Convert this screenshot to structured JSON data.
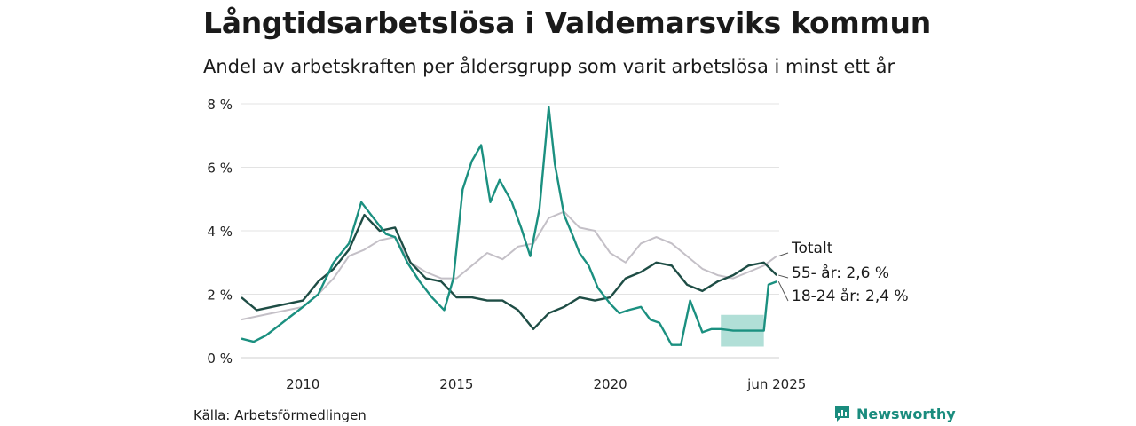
{
  "chart_data": {
    "type": "line",
    "title": "Långtidsarbetslösa i Valdemarsviks kommun",
    "subtitle": "Andel av arbetskraften per åldersgrupp som varit arbetslösa i minst ett år",
    "y_ticks": [
      "0 %",
      "2 %",
      "4 %",
      "6 %",
      "8 %"
    ],
    "y_tick_values": [
      0,
      2,
      4,
      6,
      8
    ],
    "x_ticks": [
      "2010",
      "2015",
      "2020",
      "jun 2025"
    ],
    "x_tick_values": [
      2010.0,
      2015.0,
      2020.0,
      2025.42
    ],
    "xlim": [
      2008.0,
      2025.5
    ],
    "ylim": [
      0,
      8
    ],
    "grid": true,
    "legend": "direct labels at line ends (right)",
    "series": [
      {
        "name": "Totalt",
        "label": "Totalt",
        "color": "#c4c0c7",
        "x": [
          2008.0,
          2008.5,
          2009.0,
          2009.5,
          2010.0,
          2010.5,
          2011.0,
          2011.5,
          2012.0,
          2012.5,
          2013.0,
          2013.5,
          2014.0,
          2014.5,
          2015.0,
          2015.5,
          2016.0,
          2016.5,
          2017.0,
          2017.5,
          2018.0,
          2018.5,
          2019.0,
          2019.5,
          2020.0,
          2020.5,
          2021.0,
          2021.5,
          2022.0,
          2022.5,
          2023.0,
          2023.5,
          2024.0,
          2024.5,
          2025.0,
          2025.42
        ],
        "values": [
          1.2,
          1.3,
          1.4,
          1.5,
          1.6,
          2.0,
          2.5,
          3.2,
          3.4,
          3.7,
          3.8,
          3.0,
          2.7,
          2.5,
          2.5,
          2.9,
          3.3,
          3.1,
          3.5,
          3.6,
          4.4,
          4.6,
          4.1,
          4.0,
          3.3,
          3.0,
          3.6,
          3.8,
          3.6,
          3.2,
          2.8,
          2.6,
          2.5,
          2.7,
          2.9,
          3.2
        ]
      },
      {
        "name": "55- år",
        "label": "55- år: 2,6 %",
        "color": "#1e4d45",
        "x": [
          2008.0,
          2008.5,
          2009.0,
          2009.5,
          2010.0,
          2010.5,
          2011.0,
          2011.5,
          2012.0,
          2012.5,
          2013.0,
          2013.5,
          2014.0,
          2014.5,
          2015.0,
          2015.5,
          2016.0,
          2016.5,
          2017.0,
          2017.5,
          2018.0,
          2018.5,
          2019.0,
          2019.5,
          2020.0,
          2020.5,
          2021.0,
          2021.5,
          2022.0,
          2022.5,
          2023.0,
          2023.5,
          2024.0,
          2024.5,
          2025.0,
          2025.42
        ],
        "values": [
          1.9,
          1.5,
          1.6,
          1.7,
          1.8,
          2.4,
          2.8,
          3.4,
          4.5,
          4.0,
          4.1,
          3.0,
          2.5,
          2.4,
          1.9,
          1.9,
          1.8,
          1.8,
          1.5,
          0.9,
          1.4,
          1.6,
          1.9,
          1.8,
          1.9,
          2.5,
          2.7,
          3.0,
          2.9,
          2.3,
          2.1,
          2.4,
          2.6,
          2.9,
          3.0,
          2.6
        ]
      },
      {
        "name": "18-24 år",
        "label": "18-24 år: 2,4 %",
        "color": "#1b9080",
        "x": [
          2008.0,
          2008.4,
          2008.8,
          2009.2,
          2009.6,
          2010.0,
          2010.5,
          2011.0,
          2011.5,
          2011.9,
          2012.3,
          2012.7,
          2013.0,
          2013.4,
          2013.8,
          2014.2,
          2014.6,
          2014.9,
          2015.2,
          2015.5,
          2015.8,
          2016.1,
          2016.4,
          2016.8,
          2017.1,
          2017.4,
          2017.7,
          2018.0,
          2018.2,
          2018.5,
          2018.8,
          2019.0,
          2019.3,
          2019.6,
          2020.0,
          2020.3,
          2020.6,
          2021.0,
          2021.3,
          2021.6,
          2022.0,
          2022.3,
          2022.6,
          2023.0,
          2023.3,
          2023.6,
          2024.0,
          2024.5,
          2025.0,
          2025.15,
          2025.42
        ],
        "values": [
          0.6,
          0.5,
          0.7,
          1.0,
          1.3,
          1.6,
          2.0,
          3.0,
          3.6,
          4.9,
          4.4,
          3.9,
          3.8,
          3.0,
          2.4,
          1.9,
          1.5,
          2.5,
          5.3,
          6.2,
          6.7,
          4.9,
          5.6,
          4.9,
          4.1,
          3.2,
          4.7,
          7.9,
          6.1,
          4.5,
          3.8,
          3.3,
          2.9,
          2.2,
          1.7,
          1.4,
          1.5,
          1.6,
          1.2,
          1.1,
          0.4,
          0.4,
          1.8,
          0.8,
          0.9,
          0.9,
          0.85,
          0.85,
          0.85,
          2.3,
          2.4
        ]
      }
    ],
    "uncertainty_band": {
      "series": "18-24 år",
      "color": "#a8dcd3",
      "x": [
        2023.6,
        2025.0
      ],
      "lower": [
        0.35,
        0.35
      ],
      "upper": [
        1.35,
        1.35
      ]
    }
  },
  "footer": {
    "source": "Källa: Arbetsförmedlingen",
    "brand": "Newsworthy"
  }
}
